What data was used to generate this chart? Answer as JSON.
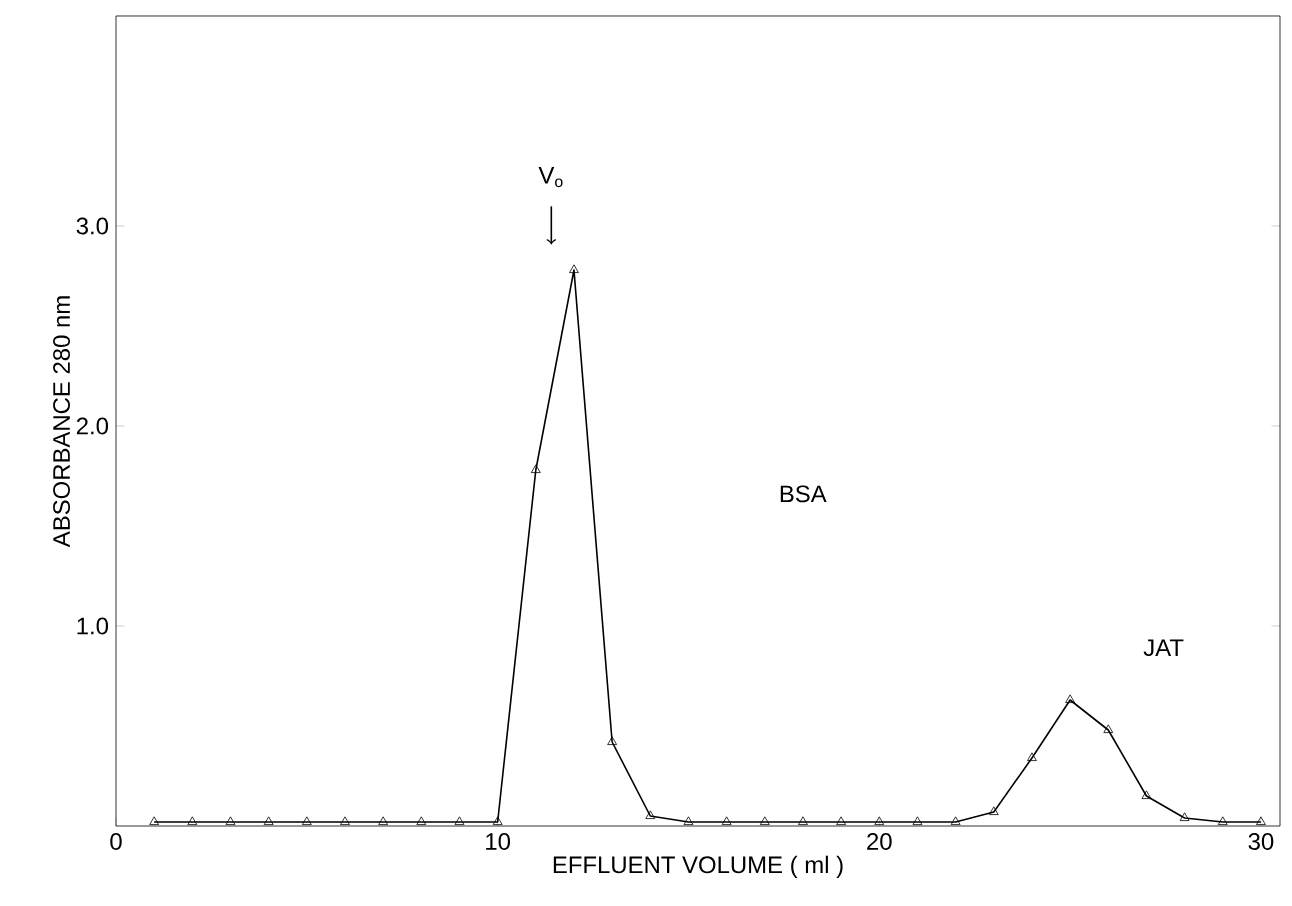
{
  "chart_data": {
    "type": "line",
    "xlabel": "EFFLUENT VOLUME ( ml )",
    "ylabel": "ABSORBANCE 280 nm",
    "x": [
      1,
      2,
      3,
      4,
      5,
      6,
      7,
      8,
      9,
      10,
      11,
      12,
      13,
      14,
      15,
      16,
      17,
      18,
      19,
      20,
      21,
      22,
      23,
      24,
      25,
      26,
      27,
      28,
      29,
      30
    ],
    "series": [
      {
        "color": "#000000",
        "values": [
          0.02,
          0.02,
          0.02,
          0.02,
          0.02,
          0.02,
          0.02,
          0.02,
          0.02,
          0.02,
          1.78,
          2.78,
          0.42,
          0.05,
          0.02,
          0.02,
          0.02,
          0.02,
          0.02,
          0.02,
          0.02,
          0.02,
          0.07,
          0.34,
          0.63,
          0.48,
          0.15,
          0.04,
          0.02,
          0.02
        ]
      }
    ],
    "xlim": [
      0,
      30.5
    ],
    "ylim": [
      0,
      4.05
    ],
    "xticks": [
      0,
      10,
      20,
      30
    ],
    "yticks": [
      {
        "value": 1,
        "label": "1.0"
      },
      {
        "value": 2,
        "label": "2.0"
      },
      {
        "value": 3,
        "label": "3.0"
      }
    ],
    "marker": "triangle",
    "line_style": "solid",
    "grid": false,
    "annotations": [
      "V$_{o}$",
      "BSA",
      "JAT"
    ]
  }
}
